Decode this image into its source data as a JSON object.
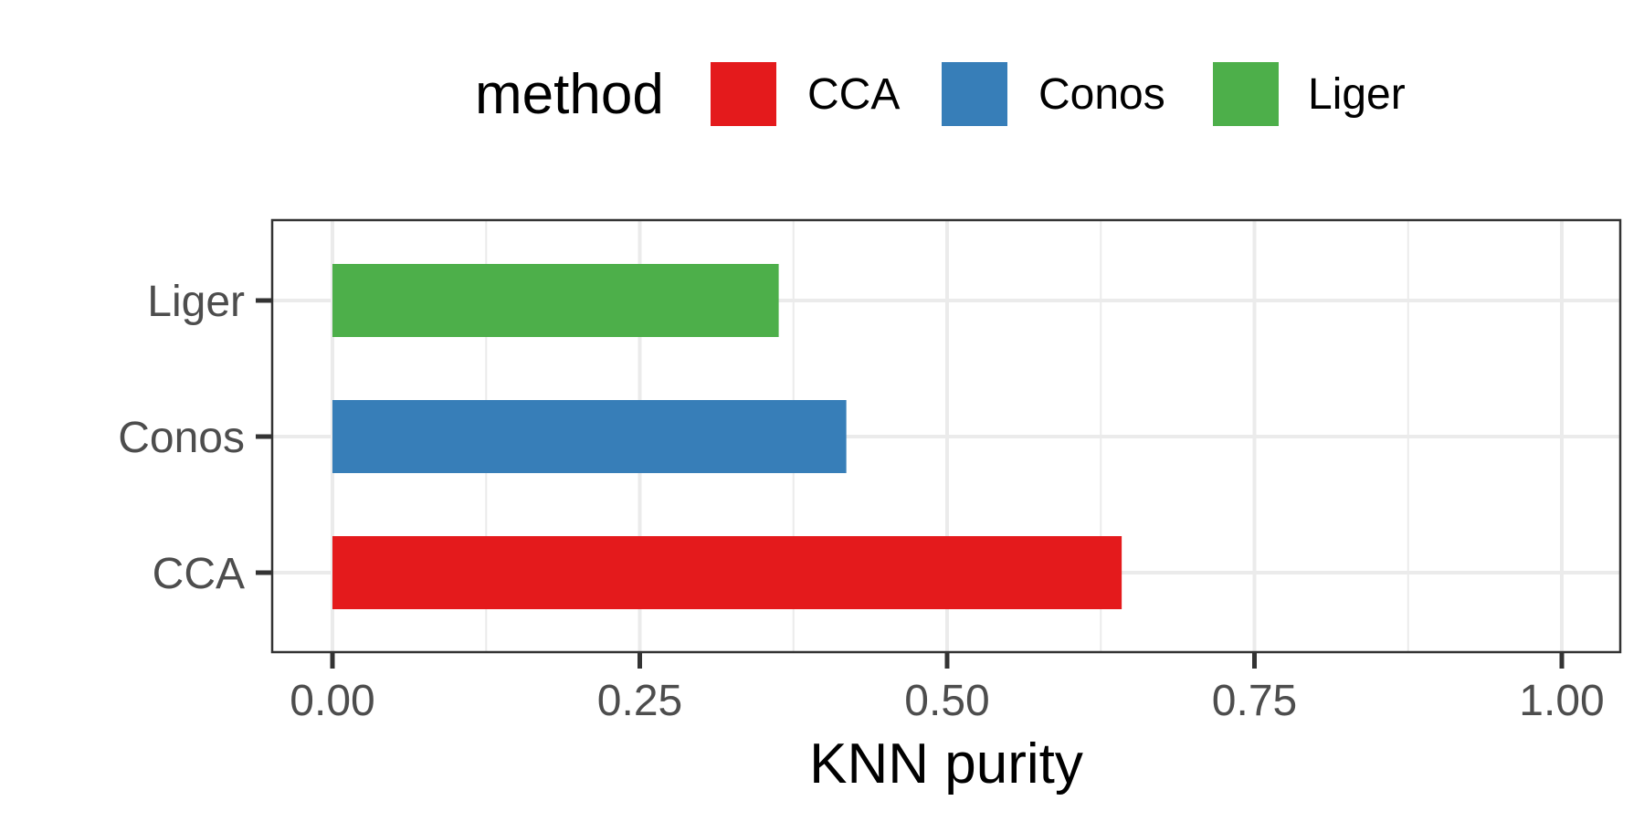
{
  "chart_data": {
    "type": "bar",
    "orientation": "horizontal",
    "categories": [
      "CCA",
      "Conos",
      "Liger"
    ],
    "values": [
      0.642,
      0.418,
      0.363
    ],
    "colors": [
      "#E41A1C",
      "#377EB8",
      "#4DAF4A"
    ],
    "xlabel": "KNN purity",
    "ylabel": "",
    "xlim": [
      0,
      1
    ],
    "xticks": [
      0,
      0.25,
      0.5,
      0.75,
      1
    ],
    "xtick_labels": [
      "0.00",
      "0.25",
      "0.50",
      "0.75",
      "1.00"
    ],
    "grid": true,
    "legend": {
      "title": "method",
      "position": "top",
      "entries": [
        {
          "label": "CCA",
          "color": "#E41A1C"
        },
        {
          "label": "Conos",
          "color": "#377EB8"
        },
        {
          "label": "Liger",
          "color": "#4DAF4A"
        }
      ]
    }
  }
}
